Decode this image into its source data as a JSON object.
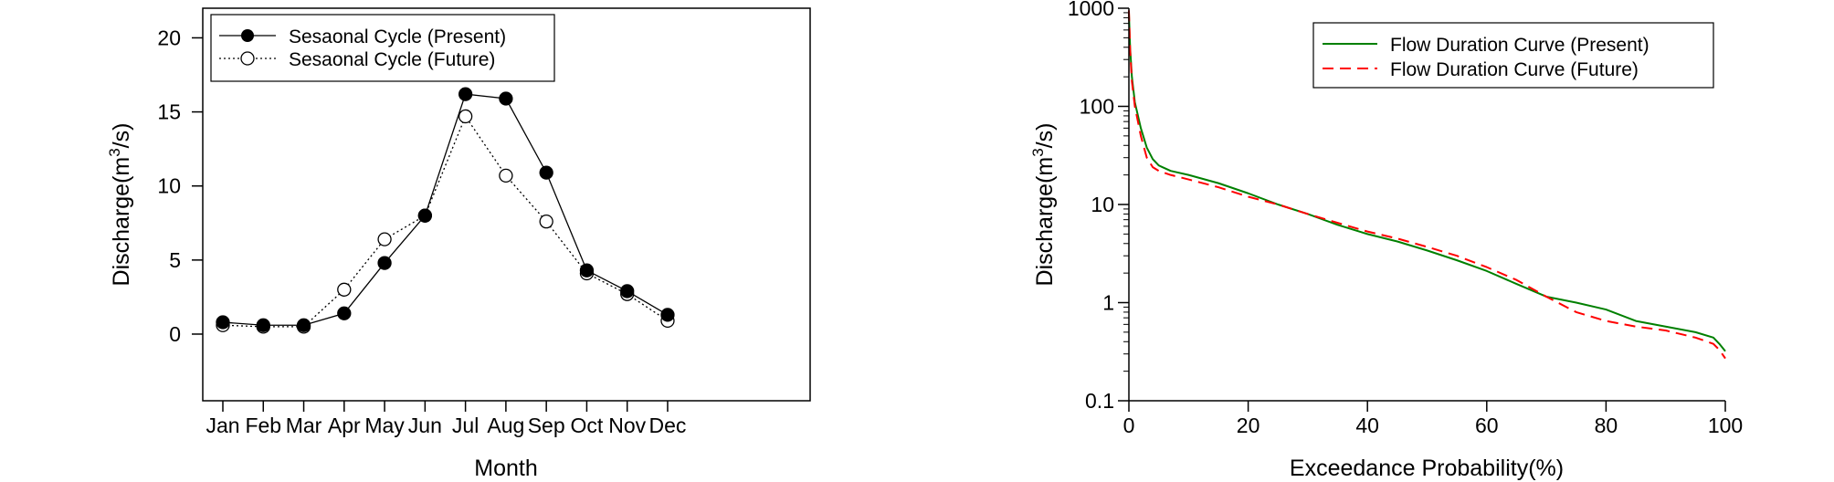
{
  "chart_data": [
    {
      "type": "line",
      "xlabel": "Month",
      "ylabel": "Discharge(m",
      "ylabel_sup": "3",
      "ylabel_tail": "/s)",
      "categories": [
        "Jan",
        "Feb",
        "Mar",
        "Apr",
        "May",
        "Jun",
        "Jul",
        "Aug",
        "Sep",
        "Oct",
        "Nov",
        "Dec"
      ],
      "ylim": [
        -4.5,
        22
      ],
      "yticks": [
        0,
        5,
        10,
        15,
        20
      ],
      "legend_position": "top-left",
      "series": [
        {
          "name": "Sesaonal Cycle (Present)",
          "style": "solid-filled",
          "color": "#000000",
          "values": [
            0.8,
            0.6,
            0.6,
            1.4,
            4.8,
            8.0,
            16.2,
            15.9,
            10.9,
            4.3,
            2.9,
            1.3
          ]
        },
        {
          "name": "Sesaonal Cycle (Future)",
          "style": "dotted-open",
          "color": "#000000",
          "values": [
            0.6,
            0.5,
            0.5,
            3.0,
            6.4,
            8.0,
            14.7,
            10.7,
            7.6,
            4.1,
            2.7,
            0.9
          ]
        }
      ]
    },
    {
      "type": "line",
      "yscale": "log",
      "xlabel": "Exceedance Probability(%)",
      "ylabel": "Discharge(m",
      "ylabel_sup": "3",
      "ylabel_tail": "/s)",
      "xlim": [
        0,
        100
      ],
      "ylim": [
        0.1,
        1000
      ],
      "xticks": [
        0,
        20,
        40,
        60,
        80,
        100
      ],
      "yticks": [
        0.1,
        1,
        10,
        100,
        1000
      ],
      "ytick_labels": [
        "0.1",
        "1",
        "10",
        "100",
        "1000"
      ],
      "legend_position": "top-right",
      "series": [
        {
          "name": "Flow Duration Curve (Present)",
          "style": "solid",
          "color": "#008000",
          "x": [
            0,
            0.2,
            0.5,
            1,
            2,
            3,
            4,
            5,
            7,
            10,
            15,
            20,
            25,
            30,
            35,
            40,
            45,
            50,
            55,
            60,
            65,
            70,
            75,
            80,
            85,
            90,
            95,
            98,
            99,
            100
          ],
          "y": [
            900,
            400,
            200,
            110,
            60,
            38,
            29,
            25,
            22,
            20,
            16.5,
            13,
            10,
            8,
            6.2,
            5,
            4.2,
            3.4,
            2.7,
            2.1,
            1.55,
            1.15,
            1.0,
            0.85,
            0.65,
            0.57,
            0.5,
            0.44,
            0.38,
            0.32
          ]
        },
        {
          "name": "Flow Duration Curve (Future)",
          "style": "dashed",
          "color": "#ff0000",
          "x": [
            0,
            0.2,
            0.5,
            1,
            2,
            3,
            4,
            5,
            7,
            10,
            15,
            20,
            25,
            30,
            35,
            40,
            45,
            50,
            55,
            60,
            65,
            70,
            75,
            80,
            85,
            90,
            95,
            98,
            99,
            100
          ],
          "y": [
            950,
            380,
            180,
            100,
            50,
            30,
            24,
            22,
            20,
            18,
            15,
            12,
            10,
            8,
            6.5,
            5.3,
            4.5,
            3.7,
            3.0,
            2.3,
            1.7,
            1.15,
            0.8,
            0.65,
            0.57,
            0.52,
            0.44,
            0.38,
            0.33,
            0.27
          ]
        }
      ]
    }
  ]
}
